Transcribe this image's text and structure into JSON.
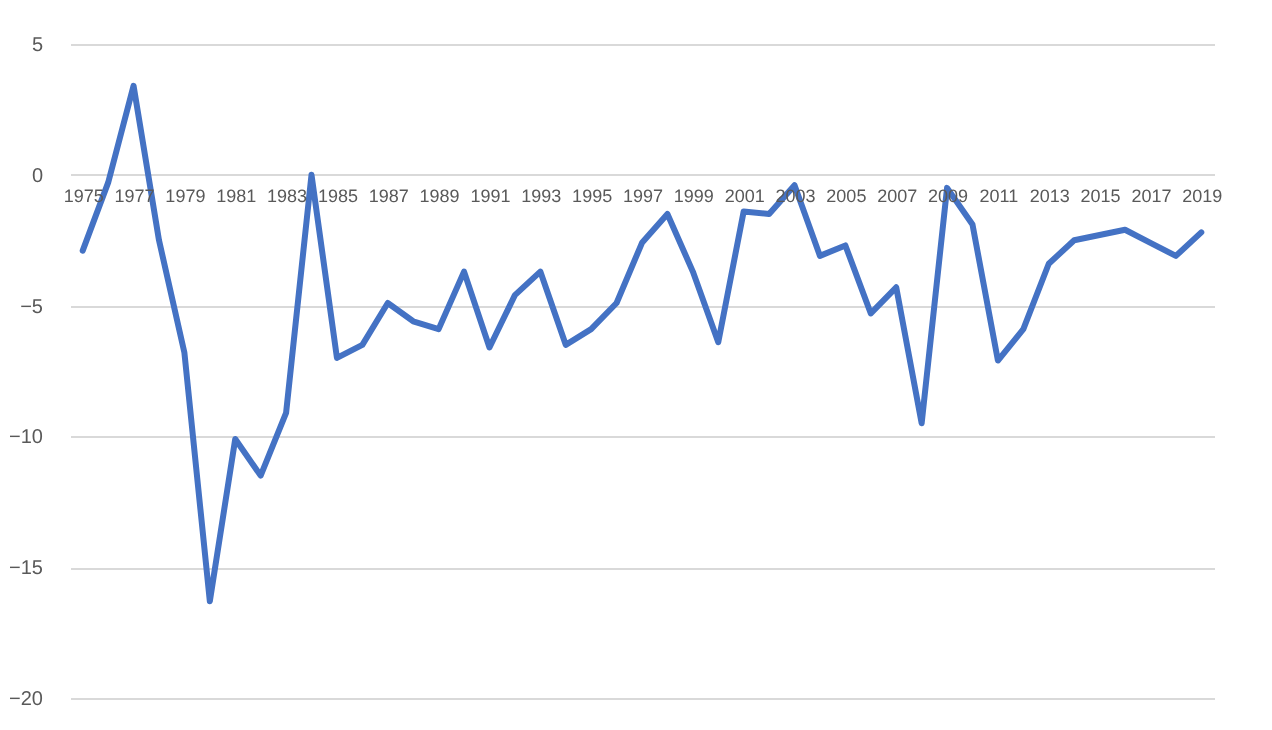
{
  "chart_data": {
    "type": "line",
    "categories": [
      "1975",
      null,
      "1977",
      null,
      "1979",
      null,
      "1981",
      null,
      "1983",
      null,
      "1985",
      null,
      "1987",
      null,
      "1989",
      null,
      "1991",
      null,
      "1993",
      null,
      "1995",
      null,
      "1997",
      null,
      "1999",
      null,
      "2001",
      null,
      "2003",
      null,
      "2005",
      null,
      "2007",
      null,
      "2009",
      null,
      "2011",
      null,
      "2013",
      null,
      "2015",
      null,
      "2017",
      null,
      "2019"
    ],
    "series": [
      {
        "color": "#4472c4",
        "values": [
          -2.9,
          -0.3,
          3.4,
          -2.5,
          -6.8,
          -16.3,
          -10.1,
          -11.5,
          -9.1,
          0.0,
          -7.0,
          -6.5,
          -4.9,
          -5.6,
          -5.9,
          -3.7,
          -6.6,
          -4.6,
          -3.7,
          -6.5,
          -5.9,
          -4.9,
          -2.6,
          -1.5,
          -3.7,
          -6.4,
          -1.4,
          -1.5,
          -0.4,
          -3.1,
          -2.7,
          -5.3,
          -4.3,
          -9.5,
          -0.5,
          -1.9,
          -7.1,
          -5.9,
          -3.4,
          -2.5,
          -2.3,
          -2.1,
          -2.6,
          -3.1,
          -2.2
        ]
      }
    ],
    "ylim": [
      -20,
      5
    ],
    "yticks": [
      -20,
      -15,
      -10,
      -5,
      0,
      5
    ],
    "grid": "y",
    "legend": false,
    "marker": "none",
    "line_style": "solid"
  }
}
